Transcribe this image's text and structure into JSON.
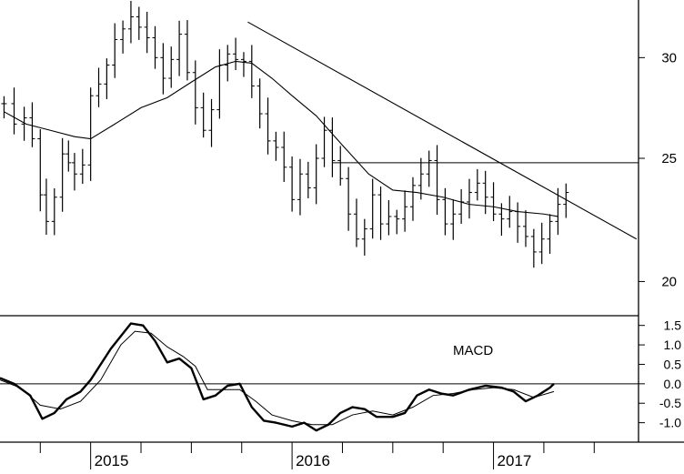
{
  "chart_data": [
    {
      "type": "ohlc",
      "panel": "price",
      "x_labels": [
        "2015",
        "2016",
        "2017"
      ],
      "y_ticks": [
        20,
        25,
        30
      ],
      "ylim": [
        18.8,
        33.3
      ],
      "xlim": [
        2014.55,
        2017.72
      ],
      "scale": "log",
      "grid": false,
      "series": [
        {
          "kind": "price-bars",
          "points": [
            [
              2014.57,
              27.6
            ],
            [
              2014.62,
              26.6
            ],
            [
              2014.67,
              26.9
            ],
            [
              2014.71,
              25.9
            ],
            [
              2014.75,
              23.4
            ],
            [
              2014.78,
              22.3
            ],
            [
              2014.82,
              23.3
            ],
            [
              2014.86,
              25.2
            ],
            [
              2014.89,
              24.8
            ],
            [
              2014.92,
              24.3
            ],
            [
              2014.96,
              24.7
            ],
            [
              2015.0,
              28.0
            ],
            [
              2015.04,
              28.6
            ],
            [
              2015.08,
              29.6
            ],
            [
              2015.12,
              31.0
            ],
            [
              2015.16,
              31.6
            ],
            [
              2015.2,
              32.3
            ],
            [
              2015.24,
              31.7
            ],
            [
              2015.28,
              31.1
            ],
            [
              2015.32,
              30.0
            ],
            [
              2015.36,
              28.9
            ],
            [
              2015.4,
              29.9
            ],
            [
              2015.44,
              31.3
            ],
            [
              2015.48,
              29.2
            ],
            [
              2015.52,
              27.4
            ],
            [
              2015.56,
              26.3
            ],
            [
              2015.6,
              27.3
            ],
            [
              2015.64,
              29.6
            ],
            [
              2015.68,
              30.2
            ],
            [
              2015.72,
              29.9
            ],
            [
              2015.76,
              29.8
            ],
            [
              2015.8,
              28.5
            ],
            [
              2015.84,
              27.1
            ],
            [
              2015.88,
              25.8
            ],
            [
              2015.92,
              25.5
            ],
            [
              2015.96,
              24.6
            ],
            [
              2016.0,
              23.2
            ],
            [
              2016.04,
              24.3
            ],
            [
              2016.08,
              23.7
            ],
            [
              2016.12,
              25.0
            ],
            [
              2016.16,
              26.3
            ],
            [
              2016.2,
              24.9
            ],
            [
              2016.24,
              24.1
            ],
            [
              2016.28,
              22.6
            ],
            [
              2016.32,
              21.6
            ],
            [
              2016.36,
              22.0
            ],
            [
              2016.4,
              23.4
            ],
            [
              2016.44,
              22.2
            ],
            [
              2016.48,
              22.5
            ],
            [
              2016.52,
              22.4
            ],
            [
              2016.56,
              22.9
            ],
            [
              2016.6,
              23.8
            ],
            [
              2016.64,
              24.3
            ],
            [
              2016.68,
              24.9
            ],
            [
              2016.72,
              23.2
            ],
            [
              2016.76,
              22.2
            ],
            [
              2016.8,
              22.6
            ],
            [
              2016.84,
              23.1
            ],
            [
              2016.88,
              23.5
            ],
            [
              2016.92,
              23.9
            ],
            [
              2016.96,
              23.3
            ],
            [
              2017.0,
              22.6
            ],
            [
              2017.04,
              22.4
            ],
            [
              2017.08,
              22.7
            ],
            [
              2017.12,
              22.1
            ],
            [
              2017.16,
              21.7
            ],
            [
              2017.2,
              21.1
            ],
            [
              2017.24,
              21.6
            ],
            [
              2017.28,
              22.3
            ],
            [
              2017.32,
              23.0
            ],
            [
              2017.36,
              23.5
            ]
          ]
        },
        {
          "kind": "moving-average",
          "points": [
            [
              2014.57,
              27.2
            ],
            [
              2014.68,
              26.6
            ],
            [
              2014.8,
              26.3
            ],
            [
              2014.92,
              26.0
            ],
            [
              2015.0,
              25.9
            ],
            [
              2015.12,
              26.6
            ],
            [
              2015.25,
              27.4
            ],
            [
              2015.38,
              27.9
            ],
            [
              2015.5,
              28.7
            ],
            [
              2015.62,
              29.5
            ],
            [
              2015.72,
              29.8
            ],
            [
              2015.8,
              29.7
            ],
            [
              2015.9,
              28.9
            ],
            [
              2016.0,
              28.0
            ],
            [
              2016.12,
              27.0
            ],
            [
              2016.25,
              25.6
            ],
            [
              2016.38,
              24.3
            ],
            [
              2016.5,
              23.6
            ],
            [
              2016.62,
              23.5
            ],
            [
              2016.75,
              23.3
            ],
            [
              2016.88,
              23.0
            ],
            [
              2017.0,
              22.9
            ],
            [
              2017.12,
              22.7
            ],
            [
              2017.25,
              22.6
            ],
            [
              2017.32,
              22.5
            ]
          ]
        },
        {
          "kind": "trendline",
          "points": [
            [
              2015.78,
              32.0
            ],
            [
              2017.71,
              21.6
            ]
          ]
        },
        {
          "kind": "horizontal-line",
          "points": [
            [
              2016.2,
              24.8
            ],
            [
              2017.72,
              24.8
            ]
          ]
        }
      ]
    },
    {
      "type": "line",
      "panel": "indicator",
      "title": "MACD",
      "y_ticks": [
        1.5,
        1.0,
        0.5,
        0.0,
        -0.5,
        -1.0
      ],
      "y_tick_labels": [
        "1.5",
        "1.0",
        "0.5",
        "0.0",
        "-0.5",
        "-1.0"
      ],
      "ylim": [
        -1.5,
        1.75
      ],
      "xlim": [
        2014.55,
        2017.72
      ],
      "grid": false,
      "series": [
        {
          "role": "macd-line",
          "points": [
            [
              2014.55,
              0.15
            ],
            [
              2014.62,
              0.0
            ],
            [
              2014.7,
              -0.3
            ],
            [
              2014.76,
              -0.9
            ],
            [
              2014.82,
              -0.75
            ],
            [
              2014.88,
              -0.4
            ],
            [
              2014.95,
              -0.2
            ],
            [
              2015.0,
              0.1
            ],
            [
              2015.1,
              0.9
            ],
            [
              2015.2,
              1.55
            ],
            [
              2015.26,
              1.5
            ],
            [
              2015.32,
              1.1
            ],
            [
              2015.38,
              0.55
            ],
            [
              2015.44,
              0.65
            ],
            [
              2015.5,
              0.4
            ],
            [
              2015.56,
              -0.4
            ],
            [
              2015.62,
              -0.3
            ],
            [
              2015.68,
              -0.05
            ],
            [
              2015.74,
              0.0
            ],
            [
              2015.8,
              -0.6
            ],
            [
              2015.86,
              -0.95
            ],
            [
              2015.92,
              -1.0
            ],
            [
              2016.0,
              -1.1
            ],
            [
              2016.06,
              -1.0
            ],
            [
              2016.12,
              -1.2
            ],
            [
              2016.18,
              -1.05
            ],
            [
              2016.24,
              -0.75
            ],
            [
              2016.3,
              -0.6
            ],
            [
              2016.36,
              -0.65
            ],
            [
              2016.42,
              -0.85
            ],
            [
              2016.5,
              -0.85
            ],
            [
              2016.56,
              -0.75
            ],
            [
              2016.62,
              -0.3
            ],
            [
              2016.68,
              -0.15
            ],
            [
              2016.74,
              -0.25
            ],
            [
              2016.8,
              -0.3
            ],
            [
              2016.88,
              -0.15
            ],
            [
              2016.96,
              -0.05
            ],
            [
              2017.04,
              -0.1
            ],
            [
              2017.1,
              -0.2
            ],
            [
              2017.16,
              -0.45
            ],
            [
              2017.22,
              -0.3
            ],
            [
              2017.28,
              -0.1
            ],
            [
              2017.3,
              0.0
            ]
          ]
        },
        {
          "role": "signal-line",
          "points": [
            [
              2014.55,
              0.1
            ],
            [
              2014.65,
              -0.1
            ],
            [
              2014.75,
              -0.55
            ],
            [
              2014.85,
              -0.65
            ],
            [
              2014.95,
              -0.45
            ],
            [
              2015.05,
              0.1
            ],
            [
              2015.15,
              1.0
            ],
            [
              2015.22,
              1.35
            ],
            [
              2015.3,
              1.3
            ],
            [
              2015.38,
              0.95
            ],
            [
              2015.46,
              0.7
            ],
            [
              2015.52,
              0.45
            ],
            [
              2015.58,
              -0.15
            ],
            [
              2015.66,
              -0.15
            ],
            [
              2015.74,
              -0.15
            ],
            [
              2015.82,
              -0.45
            ],
            [
              2015.9,
              -0.8
            ],
            [
              2016.0,
              -0.95
            ],
            [
              2016.1,
              -1.05
            ],
            [
              2016.2,
              -1.05
            ],
            [
              2016.3,
              -0.8
            ],
            [
              2016.4,
              -0.7
            ],
            [
              2016.5,
              -0.8
            ],
            [
              2016.6,
              -0.6
            ],
            [
              2016.7,
              -0.3
            ],
            [
              2016.8,
              -0.25
            ],
            [
              2016.9,
              -0.15
            ],
            [
              2017.0,
              -0.1
            ],
            [
              2017.1,
              -0.15
            ],
            [
              2017.2,
              -0.35
            ],
            [
              2017.3,
              -0.2
            ]
          ]
        },
        {
          "role": "zero-line",
          "points": [
            [
              2014.55,
              0.0
            ],
            [
              2017.72,
              0.0
            ]
          ]
        }
      ]
    }
  ]
}
